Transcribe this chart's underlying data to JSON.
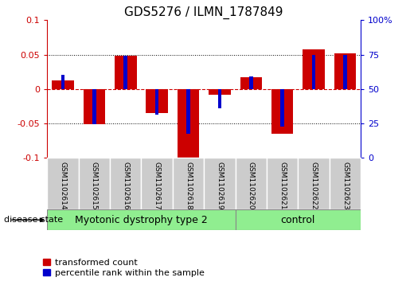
{
  "title": "GDS5276 / ILMN_1787849",
  "samples": [
    "GSM1102614",
    "GSM1102615",
    "GSM1102616",
    "GSM1102617",
    "GSM1102618",
    "GSM1102619",
    "GSM1102620",
    "GSM1102621",
    "GSM1102622",
    "GSM1102623"
  ],
  "red_values": [
    0.012,
    -0.052,
    0.048,
    -0.035,
    -0.1,
    -0.008,
    0.017,
    -0.065,
    0.058,
    0.052
  ],
  "blue_values": [
    0.02,
    -0.052,
    0.048,
    -0.038,
    -0.065,
    -0.028,
    0.018,
    -0.055,
    0.05,
    0.05
  ],
  "red_color": "#cc0000",
  "blue_color": "#0000cc",
  "ylim": [
    -0.1,
    0.1
  ],
  "yticks_left": [
    -0.1,
    -0.05,
    0.0,
    0.05,
    0.1
  ],
  "ytick_labels_left": [
    "-0.1",
    "-0.05",
    "0",
    "0.05",
    "0.1"
  ],
  "yticks_right": [
    -0.1,
    -0.05,
    0.0,
    0.05,
    0.1
  ],
  "ytick_labels_right": [
    "0",
    "25",
    "50",
    "75",
    "100%"
  ],
  "group1_label": "Myotonic dystrophy type 2",
  "group2_label": "control",
  "group1_indices": [
    0,
    1,
    2,
    3,
    4,
    5
  ],
  "group2_indices": [
    6,
    7,
    8,
    9
  ],
  "disease_state_label": "disease state",
  "legend_red": "transformed count",
  "legend_blue": "percentile rank within the sample",
  "red_bar_width": 0.7,
  "blue_bar_width": 0.12,
  "group_bg": "#90EE90",
  "sample_bg": "#cccccc",
  "hline_color": "#cc0000",
  "grid_color": "#000000",
  "title_fontsize": 11,
  "tick_fontsize": 8,
  "sample_fontsize": 6.5,
  "group_fontsize": 9,
  "legend_fontsize": 8
}
